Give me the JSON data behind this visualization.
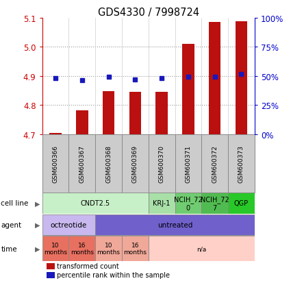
{
  "title": "GDS4330 / 7998724",
  "samples": [
    "GSM600366",
    "GSM600367",
    "GSM600368",
    "GSM600369",
    "GSM600370",
    "GSM600371",
    "GSM600372",
    "GSM600373"
  ],
  "red_values": [
    4.703,
    4.782,
    4.848,
    4.846,
    4.846,
    5.01,
    5.085,
    5.087
  ],
  "blue_values": [
    4.893,
    4.886,
    4.898,
    4.888,
    4.893,
    4.898,
    4.898,
    4.906
  ],
  "ylim": [
    4.7,
    5.1
  ],
  "yticks": [
    4.7,
    4.8,
    4.9,
    5.0,
    5.1
  ],
  "right_yticks": [
    0,
    25,
    50,
    75,
    100
  ],
  "cell_line_spans": [
    {
      "label": "CNDT2.5",
      "start": 0,
      "end": 4,
      "color": "#c8f0c8"
    },
    {
      "label": "KRJ-1",
      "start": 4,
      "end": 5,
      "color": "#a8e0a8"
    },
    {
      "label": "NCIH_72\n0",
      "start": 5,
      "end": 6,
      "color": "#70cc70"
    },
    {
      "label": "NCIH_72\n7",
      "start": 6,
      "end": 7,
      "color": "#50bb50"
    },
    {
      "label": "QGP",
      "start": 7,
      "end": 8,
      "color": "#28c828"
    }
  ],
  "agent_spans": [
    {
      "label": "octreotide",
      "start": 0,
      "end": 2,
      "color": "#c8b8ef"
    },
    {
      "label": "untreated",
      "start": 2,
      "end": 8,
      "color": "#7060cc"
    }
  ],
  "time_spans": [
    {
      "label": "10\nmonths",
      "start": 0,
      "end": 1,
      "color": "#e87060"
    },
    {
      "label": "16\nmonths",
      "start": 1,
      "end": 2,
      "color": "#e87060"
    },
    {
      "label": "10\nmonths",
      "start": 2,
      "end": 3,
      "color": "#f0a898"
    },
    {
      "label": "16\nmonths",
      "start": 3,
      "end": 4,
      "color": "#f0a898"
    },
    {
      "label": "n/a",
      "start": 4,
      "end": 8,
      "color": "#ffd0c8"
    }
  ],
  "bar_color": "#bb1010",
  "dot_color": "#1818bb",
  "grid_color": "#999999",
  "lc_left": "#cc0000",
  "lc_right": "#0000cc",
  "sample_box_color": "#cccccc",
  "sample_box_edge": "#888888"
}
